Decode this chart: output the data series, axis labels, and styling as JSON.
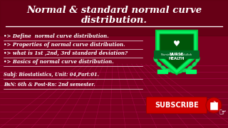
{
  "bg_color": "#7B0020",
  "grid_color": "#FF1493",
  "title_line1": "Normal & standard normal curve",
  "title_line2": "distribution.",
  "bullet1": "•> Define  normal curve distribution.",
  "bullet2": "•> Properties of normal curve distribution.",
  "bullet3": "•> what is 1st ,2nd, 3rd standard deviation?",
  "bullet4": "•> Basics of normal curve distribution.",
  "subj_line1": "Subj: Biostatistics, Unit: 04,Part:01.",
  "subj_line2": "BsN: 6th & Post-Rn: 2nd semester.",
  "subscribe_text": "SUBSCRIBE",
  "title_color": "#FFFFFF",
  "bullet_color": "#FFFFFF",
  "subscribe_bg": "#CC0000",
  "subscribe_text_color": "#FFFFFF",
  "shield_color": "#00FF66",
  "figsize": [
    3.2,
    1.8
  ],
  "dpi": 100
}
